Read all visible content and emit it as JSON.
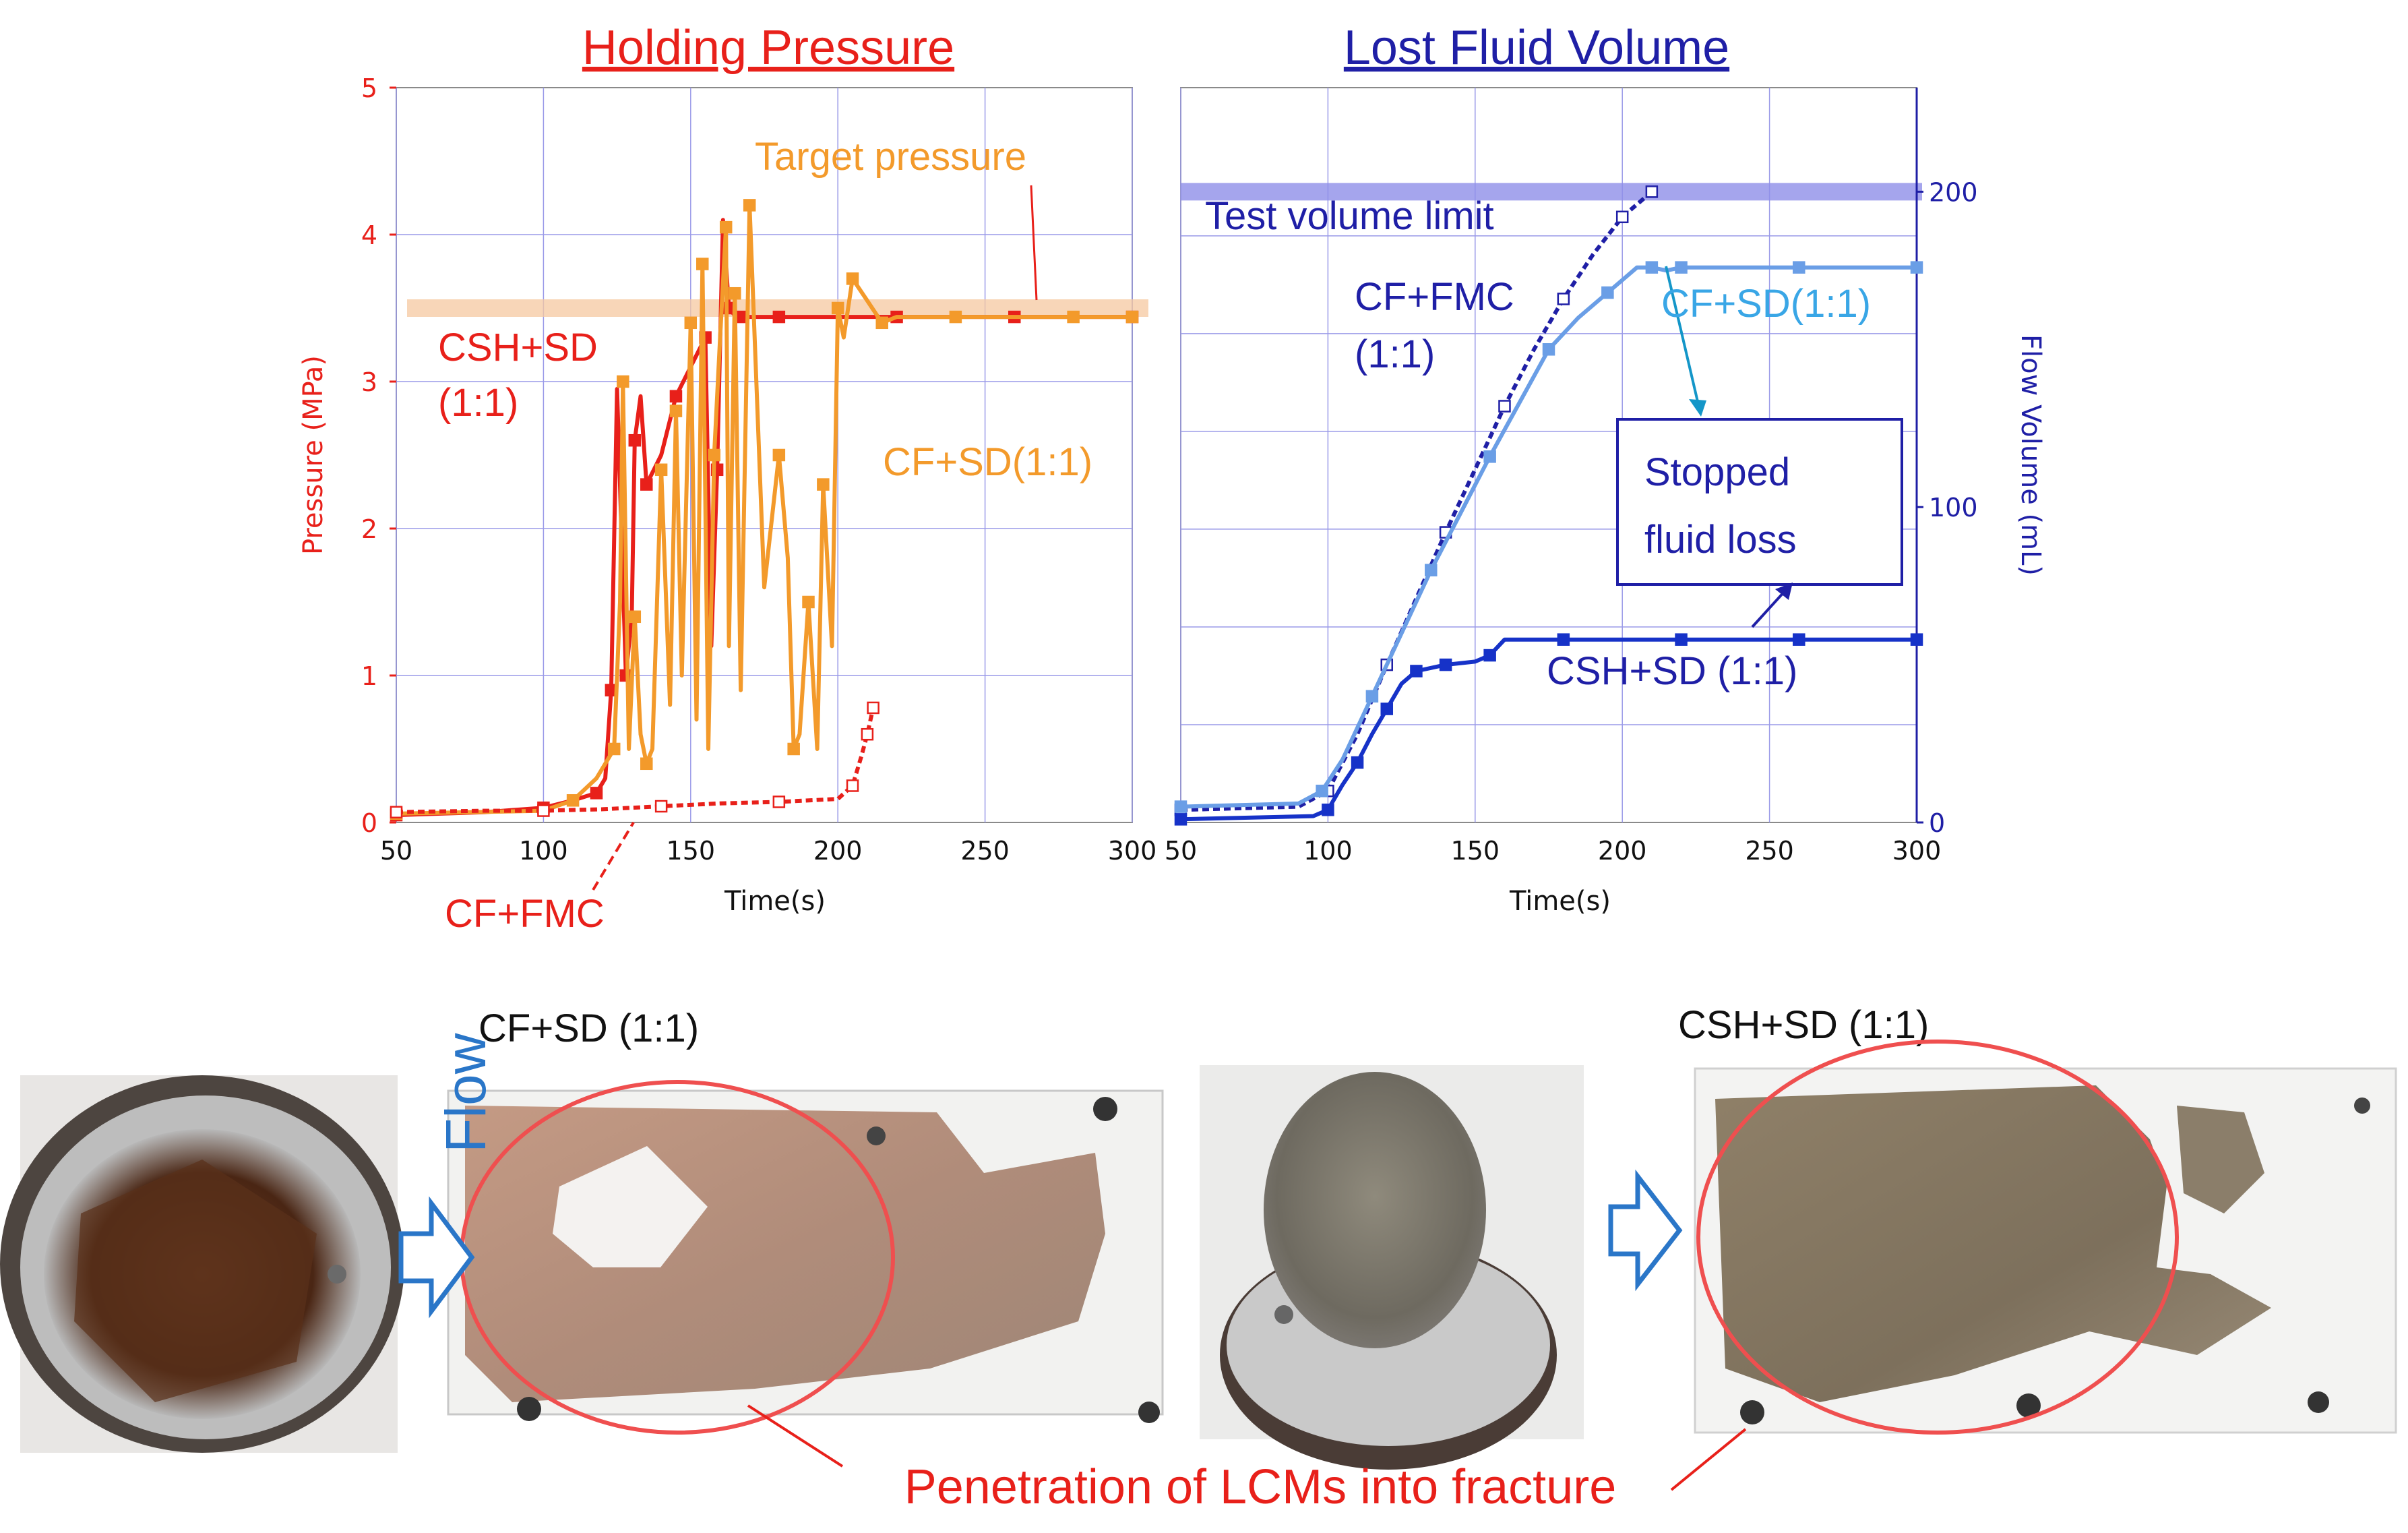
{
  "figure": {
    "bottom_caption": "Penetration of LCMs into fracture",
    "photo_labels": [
      "CF+SD (1:1)",
      "CSH+SD (1:1)"
    ],
    "flow_label": "Flow"
  },
  "chart_data": [
    {
      "type": "line",
      "title": "Holding Pressure",
      "xlabel": "Time(s)",
      "ylabel": "Pressure (MPa)",
      "xlim": [
        50,
        300
      ],
      "ylim": [
        0,
        5
      ],
      "xticks": [
        "50",
        "100",
        "150",
        "200",
        "250",
        "300"
      ],
      "yticks": [
        "0",
        "1",
        "2",
        "3",
        "4",
        "5"
      ],
      "reference_band": {
        "label": "Target pressure",
        "value": 3.5
      },
      "series": [
        {
          "name": "CSH+SD (1:1)",
          "label": "CSH+SD\n(1:1)",
          "color": "#e8201a",
          "x": [
            50,
            80,
            100,
            110,
            118,
            121,
            123,
            125,
            128,
            130,
            131,
            133,
            135,
            140,
            145,
            150,
            155,
            157,
            159,
            161,
            163,
            165,
            167,
            170,
            180,
            200,
            220,
            240,
            260,
            280,
            300
          ],
          "y": [
            0.05,
            0.07,
            0.1,
            0.15,
            0.2,
            0.3,
            0.9,
            2.95,
            1.0,
            1.4,
            2.6,
            2.9,
            2.3,
            2.5,
            2.9,
            3.1,
            3.3,
            1.2,
            2.4,
            4.1,
            3.5,
            3.45,
            3.44,
            3.44,
            3.44,
            3.44,
            3.44,
            3.44,
            3.44,
            3.44,
            3.44
          ]
        },
        {
          "name": "CF+SD(1:1)",
          "label": "CF+SD(1:1)",
          "color": "#f39a2b",
          "x": [
            50,
            100,
            110,
            118,
            124,
            126,
            127,
            129,
            131,
            133,
            135,
            137,
            140,
            143,
            145,
            147,
            150,
            152,
            154,
            156,
            158,
            160,
            162,
            163,
            165,
            167,
            170,
            175,
            180,
            183,
            185,
            187,
            190,
            193,
            195,
            198,
            200,
            202,
            205,
            210,
            215,
            220,
            240,
            260,
            280,
            300
          ],
          "y": [
            0.06,
            0.08,
            0.15,
            0.3,
            0.5,
            1.5,
            3.0,
            0.5,
            1.4,
            0.6,
            0.4,
            0.5,
            2.4,
            0.8,
            2.8,
            1.0,
            3.4,
            0.7,
            3.8,
            0.5,
            2.5,
            3.3,
            4.05,
            1.2,
            3.6,
            0.9,
            4.2,
            1.6,
            2.5,
            1.8,
            0.5,
            0.6,
            1.5,
            0.5,
            2.3,
            1.2,
            3.5,
            3.3,
            3.7,
            3.55,
            3.4,
            3.44,
            3.44,
            3.44,
            3.44,
            3.44
          ]
        },
        {
          "name": "CF+FMC",
          "label": "CF+FMC",
          "color": "#e8201a",
          "dashed": true,
          "x": [
            50,
            80,
            100,
            120,
            140,
            160,
            180,
            200,
            205,
            208,
            210,
            212
          ],
          "y": [
            0.07,
            0.08,
            0.08,
            0.09,
            0.11,
            0.13,
            0.14,
            0.16,
            0.25,
            0.45,
            0.6,
            0.78
          ]
        }
      ]
    },
    {
      "type": "line",
      "title": "Lost Fluid Volume",
      "xlabel": "Time(s)",
      "ylabel": "Flow Volume (mL)",
      "xlim": [
        50,
        300
      ],
      "ylim": [
        0,
        233
      ],
      "xticks": [
        "50",
        "100",
        "150",
        "200",
        "250",
        "300"
      ],
      "yticks": [
        "0",
        "100",
        "200"
      ],
      "reference_band": {
        "label": "Test volume limit",
        "value": 200
      },
      "annotation": "Stopped\nfluid loss",
      "series": [
        {
          "name": "CF+FMC",
          "label": "CF+FMC\n(1:1)",
          "color": "#1f1fa6",
          "dashed": true,
          "x": [
            50,
            90,
            100,
            110,
            120,
            130,
            140,
            150,
            160,
            170,
            180,
            190,
            200,
            205,
            210
          ],
          "y": [
            4,
            5,
            10,
            28,
            50,
            71,
            92,
            112,
            132,
            150,
            166,
            180,
            192,
            196,
            200
          ]
        },
        {
          "name": "CF+SD(1:1)",
          "label": "CF+SD(1:1)",
          "color": "#6a9ee6",
          "x": [
            50,
            90,
            98,
            105,
            115,
            125,
            135,
            145,
            155,
            165,
            175,
            185,
            195,
            205,
            210,
            215,
            220,
            240,
            260,
            280,
            300
          ],
          "y": [
            5,
            6,
            10,
            20,
            40,
            60,
            80,
            98,
            116,
            133,
            150,
            160,
            168,
            176,
            176,
            175,
            176,
            176,
            176,
            176,
            176
          ]
        },
        {
          "name": "CSH+SD (1:1)",
          "label": "CSH+SD (1:1)",
          "color": "#1632c8",
          "x": [
            50,
            95,
            100,
            105,
            110,
            115,
            120,
            125,
            130,
            135,
            140,
            150,
            155,
            160,
            180,
            200,
            220,
            240,
            260,
            280,
            300
          ],
          "y": [
            1,
            2,
            4,
            12,
            19,
            28,
            36,
            44,
            48,
            49,
            50,
            51,
            53,
            58,
            58,
            58,
            58,
            58,
            58,
            58,
            58
          ]
        }
      ]
    }
  ]
}
